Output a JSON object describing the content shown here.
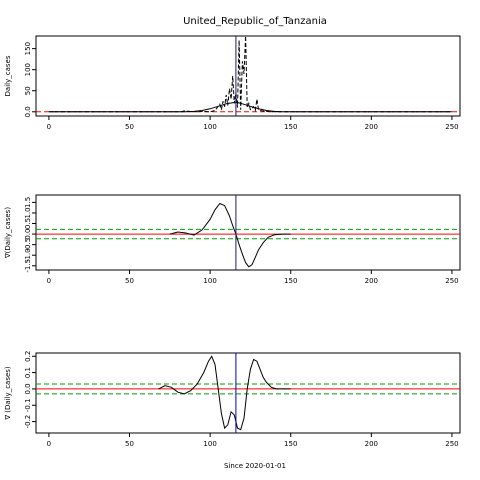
{
  "title": "United_Republic_of_Tanzania",
  "xlabel": "Since 2020-01-01",
  "colors": {
    "curve": "#000000",
    "zero_line": "#ff0000",
    "band": "#00a000",
    "marker": "#0000cc"
  },
  "chart_data": [
    {
      "type": "line",
      "ylabel": "Daily_cases",
      "xlim": [
        -8,
        255
      ],
      "ylim": [
        -10,
        180
      ],
      "xticks": [
        0,
        50,
        100,
        150,
        200,
        250
      ],
      "yticks": [
        0,
        50,
        100,
        150
      ],
      "vline_x": 116,
      "hline_y": 0,
      "series": [
        {
          "style": "dashed",
          "x": [
            0,
            82,
            84,
            90,
            95,
            100,
            103,
            104,
            106,
            107,
            108,
            109,
            110,
            111,
            112,
            113,
            114,
            115,
            116,
            117,
            118,
            119,
            120,
            121,
            122,
            123,
            124,
            125,
            126,
            127,
            128,
            129,
            130,
            132,
            135,
            140,
            150,
            250
          ],
          "y": [
            0,
            0,
            2,
            0,
            1,
            0,
            3,
            8,
            18,
            5,
            25,
            12,
            40,
            15,
            55,
            30,
            85,
            20,
            45,
            10,
            170,
            5,
            120,
            90,
            180,
            10,
            20,
            5,
            8,
            12,
            3,
            30,
            5,
            2,
            1,
            0,
            0,
            0
          ]
        },
        {
          "style": "solid",
          "x": [
            0,
            85,
            90,
            95,
            100,
            105,
            110,
            115,
            118,
            120,
            125,
            130,
            135,
            140,
            145,
            150,
            250
          ],
          "y": [
            0,
            0,
            1,
            3,
            7,
            13,
            19,
            22,
            21,
            19,
            13,
            7,
            3,
            1,
            0,
            0,
            0
          ]
        }
      ]
    },
    {
      "type": "line",
      "ylabel": "∇(Daily_cases)",
      "xlim": [
        -8,
        255
      ],
      "ylim": [
        -1.7,
        1.85
      ],
      "xticks": [
        0,
        50,
        100,
        150,
        200,
        250
      ],
      "yticks": [
        1.5,
        1.0,
        0.5,
        0.0,
        -0.5,
        -1.0,
        -1.5
      ],
      "vline_x": 116,
      "hline_y": 0,
      "band": [
        -0.22,
        0.22
      ],
      "series": [
        {
          "style": "solid",
          "x": [
            75,
            80,
            85,
            90,
            95,
            100,
            103,
            106,
            109,
            112,
            114,
            116,
            118,
            120,
            122,
            124,
            126,
            128,
            130,
            133,
            136,
            140,
            145,
            150
          ],
          "y": [
            0,
            0.1,
            0.05,
            -0.05,
            0.2,
            0.7,
            1.15,
            1.45,
            1.35,
            0.85,
            0.4,
            0.0,
            -0.5,
            -0.95,
            -1.35,
            -1.55,
            -1.45,
            -1.1,
            -0.75,
            -0.4,
            -0.15,
            -0.03,
            0,
            0
          ]
        }
      ]
    },
    {
      "type": "line",
      "ylabel": "∇ (Daily_cases)",
      "xlim": [
        -8,
        255
      ],
      "ylim": [
        -0.27,
        0.22
      ],
      "xticks": [
        0,
        50,
        100,
        150,
        200,
        250
      ],
      "yticks": [
        0.2,
        0.1,
        0.0,
        -0.1,
        -0.2
      ],
      "vline_x": 116,
      "hline_y": 0,
      "band": [
        -0.03,
        0.03
      ],
      "series": [
        {
          "style": "solid",
          "x": [
            68,
            72,
            76,
            80,
            84,
            88,
            92,
            96,
            99,
            101,
            103,
            105,
            107,
            109,
            111,
            113,
            115,
            117,
            119,
            121,
            123,
            125,
            127,
            129,
            131,
            133,
            135,
            138,
            141,
            145,
            150
          ],
          "y": [
            0,
            0.02,
            0.01,
            -0.02,
            -0.03,
            -0.01,
            0.03,
            0.1,
            0.17,
            0.2,
            0.15,
            0.0,
            -0.15,
            -0.24,
            -0.22,
            -0.14,
            -0.16,
            -0.24,
            -0.25,
            -0.18,
            0.0,
            0.12,
            0.18,
            0.17,
            0.12,
            0.07,
            0.04,
            0.01,
            0,
            0,
            0
          ]
        }
      ]
    }
  ]
}
